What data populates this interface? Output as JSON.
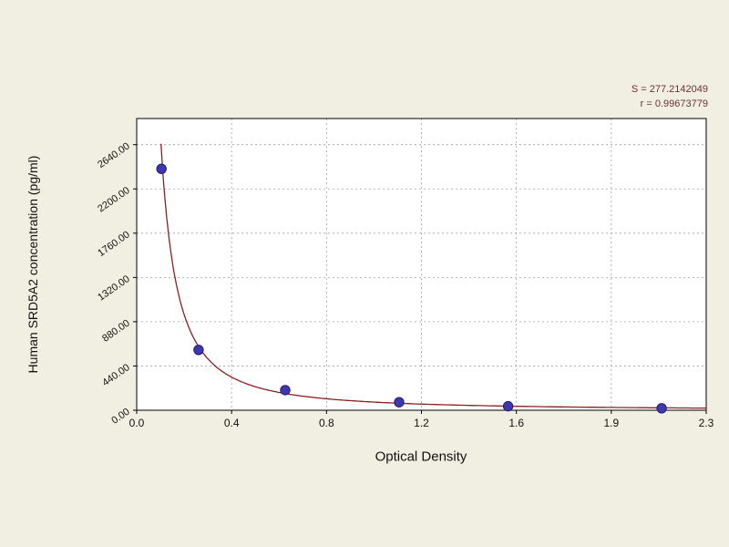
{
  "page": {
    "background": "#f1efe2"
  },
  "chart_data": {
    "type": "scatter",
    "title": "",
    "xlabel": "Optical Density",
    "ylabel": "Human SRD5A2 concentration (pg/ml)",
    "xlim": [
      0,
      2.3
    ],
    "ylim": [
      0,
      2900
    ],
    "x_tick_labels": [
      "0.0",
      "0.4",
      "0.8",
      "1.2",
      "1.6",
      "1.9",
      "2.3"
    ],
    "y_ticks": [
      0,
      440,
      880,
      1320,
      1760,
      2200,
      2640
    ],
    "y_tick_labels": [
      "0.00",
      "440.00",
      "880.00",
      "1320.00",
      "1760.00",
      "2200.00",
      "2640.00"
    ],
    "grid": true,
    "legend": "none",
    "points": [
      {
        "x": 0.1,
        "y": 2400
      },
      {
        "x": 0.25,
        "y": 600
      },
      {
        "x": 0.6,
        "y": 200
      },
      {
        "x": 1.06,
        "y": 80
      },
      {
        "x": 1.5,
        "y": 40
      },
      {
        "x": 2.12,
        "y": 20
      }
    ],
    "fit_curve": "power decay through points, clipped at plot top",
    "annotations": {
      "line1": "S = 277.2142049",
      "line2": "r = 0.99673779"
    },
    "colors": {
      "curve": "#8b2020",
      "point_fill": "#3f37ad",
      "point_stroke": "#241c6e",
      "grid": "#a0a0a0",
      "axis": "#000000",
      "plot_background": "#ffffff",
      "stats_text": "#703030"
    }
  }
}
